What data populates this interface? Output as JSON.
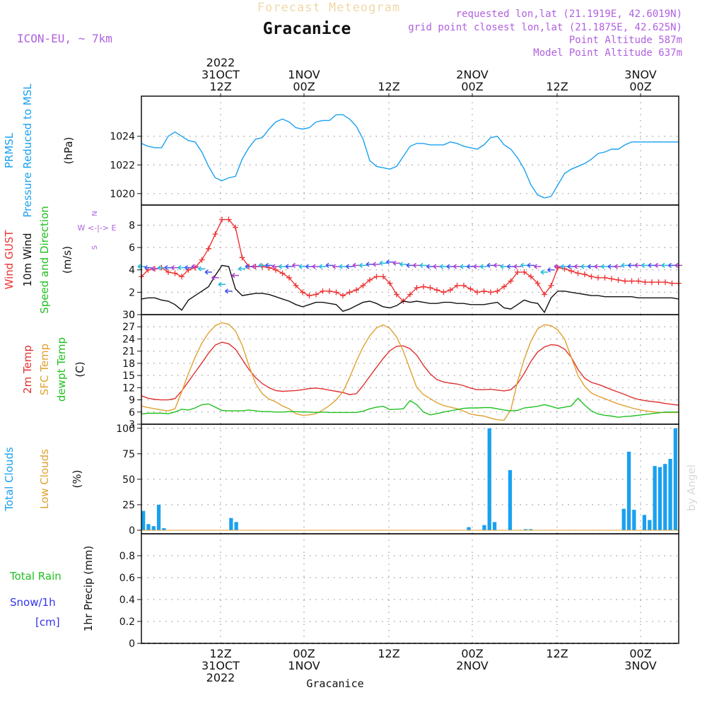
{
  "header": {
    "title": "Forecast Meteogram",
    "location": "Gracanice",
    "model": "ICON-EU, ~ 7km",
    "requested": "requested lon,lat (21.1919E, 42.6019N)",
    "grid_point": "grid point closest lon,lat (21.1875E, 42.625N)",
    "point_altitude": "Point Altitude 587m",
    "model_altitude": "Model Point Altitude 637m",
    "credit": "by Angel",
    "bottom_label": "Gracanice"
  },
  "colors": {
    "pressure": "#1aa0f0",
    "gust": "#ee3333",
    "wind": "#111111",
    "temp2m": "#e03030",
    "sfc": "#e0a030",
    "dewpt": "#20c020",
    "clouds": "#1aa0f0",
    "rain": "#20c020",
    "snow": "#3333ee",
    "purple": "#b060e0"
  },
  "chart_data": [
    {
      "type": "line",
      "panel": "pressure",
      "ylabels": [
        "PRMSL",
        "Pressure Reduced to MSL",
        "(hPa)"
      ],
      "ylim": [
        1019.2,
        1026.8
      ],
      "yticks": [
        1020,
        1022,
        1024
      ],
      "x": [
        0,
        3,
        6,
        9,
        12,
        15,
        18,
        21,
        24,
        27,
        30,
        33,
        36,
        39,
        42,
        45,
        48,
        51,
        54,
        57,
        60,
        63,
        66,
        69,
        72,
        75,
        78,
        81,
        84,
        87,
        90,
        93,
        96,
        99,
        102,
        105,
        108,
        111,
        114,
        117,
        120,
        123,
        126,
        129,
        132,
        135,
        138,
        141,
        144,
        147,
        150,
        153,
        156,
        159,
        162,
        165,
        168,
        171,
        174,
        177,
        180,
        183,
        186,
        189,
        192,
        195,
        198,
        201,
        204,
        207,
        210,
        213,
        216,
        219,
        222,
        225,
        228,
        231,
        234,
        237,
        240
      ],
      "series": [
        {
          "values": [
            1023.5,
            1023.3,
            1023.2,
            1023.2,
            1024.0,
            1024.3,
            1024.0,
            1023.7,
            1023.6,
            1022.9,
            1021.9,
            1021.1,
            1020.9,
            1021.1,
            1021.2,
            1022.4,
            1023.2,
            1023.8,
            1023.9,
            1024.5,
            1025.0,
            1025.2,
            1025.0,
            1024.6,
            1024.5,
            1024.6,
            1025.0,
            1025.1,
            1025.1,
            1025.5,
            1025.5,
            1025.2,
            1024.7,
            1023.8,
            1022.3,
            1021.9,
            1021.8,
            1021.7,
            1021.9,
            1022.6,
            1023.3,
            1023.5,
            1023.5,
            1023.4,
            1023.4,
            1023.4,
            1023.6,
            1023.5,
            1023.3,
            1023.2,
            1023.1,
            1023.4,
            1023.9,
            1024.0,
            1023.4,
            1023.1,
            1022.5,
            1021.7,
            1020.6,
            1019.9,
            1019.7,
            1019.8,
            1020.6,
            1021.4,
            1021.7,
            1021.9,
            1022.1,
            1022.4,
            1022.8,
            1022.9,
            1023.1,
            1023.1,
            1023.4,
            1023.6,
            1023.6,
            1023.6,
            1023.6,
            1023.6,
            1023.6,
            1023.6,
            1023.6
          ]
        }
      ]
    },
    {
      "type": "line",
      "panel": "wind",
      "ylabels": [
        "Wind GUST",
        "10m Wind",
        "Speed and Direction",
        "(m/s)"
      ],
      "direction_key": [
        "N",
        "W <-|-> E",
        "S"
      ],
      "ylim": [
        0,
        9.8
      ],
      "yticks": [
        0,
        2,
        4,
        6,
        8
      ],
      "series": [
        {
          "name": "Wind GUST",
          "values": [
            3.4,
            4.0,
            4.1,
            4.2,
            3.8,
            3.7,
            3.4,
            4.0,
            4.2,
            4.9,
            5.9,
            7.2,
            8.5,
            8.5,
            7.8,
            5.1,
            4.3,
            4.3,
            4.3,
            4.2,
            4.0,
            3.7,
            3.3,
            2.6,
            2.0,
            1.7,
            1.8,
            2.1,
            2.1,
            2.0,
            1.7,
            2.0,
            2.2,
            2.6,
            3.1,
            3.4,
            3.4,
            2.8,
            1.8,
            1.2,
            1.8,
            2.4,
            2.5,
            2.4,
            2.2,
            2.0,
            2.2,
            2.6,
            2.6,
            2.3,
            2.0,
            2.1,
            2.0,
            2.1,
            2.5,
            3.0,
            3.8,
            3.8,
            3.4,
            2.8,
            1.8,
            2.6,
            4.2,
            4.1,
            3.9,
            3.7,
            3.6,
            3.4,
            3.3,
            3.3,
            3.2,
            3.1,
            3.0,
            3.0,
            3.0,
            2.9,
            2.9,
            2.9,
            2.9,
            2.8,
            2.8
          ]
        },
        {
          "name": "10m Wind",
          "values": [
            1.4,
            1.5,
            1.5,
            1.3,
            1.2,
            0.9,
            0.4,
            1.3,
            1.7,
            2.1,
            2.5,
            3.5,
            4.4,
            4.3,
            2.3,
            1.7,
            1.8,
            1.9,
            1.9,
            1.8,
            1.6,
            1.4,
            1.2,
            0.9,
            0.7,
            0.9,
            1.1,
            1.1,
            1.0,
            0.9,
            0.3,
            0.5,
            0.8,
            1.1,
            1.2,
            1.0,
            0.7,
            0.6,
            0.8,
            1.2,
            1.1,
            1.2,
            1.1,
            1.0,
            1.0,
            1.1,
            1.1,
            1.0,
            1.0,
            0.9,
            0.9,
            0.9,
            1.0,
            1.1,
            0.6,
            0.5,
            0.9,
            1.3,
            1.1,
            1.0,
            0.2,
            1.5,
            2.1,
            2.1,
            2.0,
            1.9,
            1.8,
            1.7,
            1.7,
            1.6,
            1.6,
            1.6,
            1.6,
            1.6,
            1.5,
            1.5,
            1.5,
            1.5,
            1.5,
            1.5,
            1.4
          ]
        },
        {
          "name": "Speed and Direction",
          "values": [
            4.3,
            4.2,
            4.1,
            4.2,
            4.2,
            4.2,
            4.2,
            4.2,
            4.3,
            4.1,
            3.8,
            3.3,
            2.7,
            2.1,
            3.5,
            4.1,
            4.3,
            4.3,
            4.4,
            4.4,
            4.3,
            4.3,
            4.3,
            4.4,
            4.3,
            4.3,
            4.3,
            4.3,
            4.4,
            4.3,
            4.3,
            4.3,
            4.4,
            4.4,
            4.5,
            4.5,
            4.6,
            4.7,
            4.6,
            4.5,
            4.4,
            4.4,
            4.4,
            4.3,
            4.3,
            4.3,
            4.3,
            4.3,
            4.3,
            4.3,
            4.3,
            4.3,
            4.4,
            4.4,
            4.3,
            4.3,
            4.3,
            4.4,
            4.4,
            4.3,
            3.8,
            4.0,
            4.3,
            4.3,
            4.3,
            4.3,
            4.3,
            4.3,
            4.3,
            4.3,
            4.3,
            4.3,
            4.4,
            4.4,
            4.4,
            4.4,
            4.4,
            4.4,
            4.4,
            4.4,
            4.4
          ]
        }
      ]
    },
    {
      "type": "line",
      "panel": "temperature",
      "ylabels": [
        "2m Temp",
        "SFC Temp",
        "dewpt Temp",
        "(C)"
      ],
      "ylim": [
        3,
        30
      ],
      "yticks": [
        3,
        6,
        9,
        12,
        15,
        18,
        21,
        24,
        27,
        30
      ],
      "series": [
        {
          "name": "2m Temp",
          "values": [
            10.0,
            9.4,
            9.1,
            9.0,
            9.0,
            9.3,
            11.2,
            13.5,
            15.8,
            18.1,
            20.5,
            22.5,
            23.2,
            22.8,
            21.5,
            19.0,
            16.5,
            14.5,
            13.0,
            12.0,
            11.3,
            11.1,
            11.2,
            11.3,
            11.5,
            11.8,
            11.9,
            11.7,
            11.4,
            11.1,
            10.8,
            10.3,
            10.5,
            12.5,
            14.8,
            17.0,
            19.2,
            21.1,
            22.2,
            22.3,
            21.6,
            20.0,
            17.5,
            15.4,
            14.0,
            13.4,
            13.1,
            12.9,
            12.5,
            11.9,
            11.5,
            11.5,
            11.6,
            11.4,
            11.2,
            11.5,
            13.0,
            15.5,
            18.5,
            20.8,
            22.0,
            22.6,
            22.4,
            21.5,
            19.5,
            16.5,
            14.3,
            13.3,
            12.8,
            12.2,
            11.5,
            10.9,
            10.3,
            9.6,
            9.1,
            8.8,
            8.6,
            8.4,
            8.1,
            7.9,
            7.7
          ]
        },
        {
          "name": "SFC Temp",
          "values": [
            7.5,
            7.1,
            6.8,
            6.5,
            6.3,
            6.8,
            11.0,
            15.5,
            19.5,
            23.0,
            25.5,
            27.3,
            28.0,
            27.6,
            26.0,
            22.5,
            17.5,
            13.0,
            10.5,
            9.2,
            8.5,
            7.5,
            6.8,
            5.6,
            5.2,
            5.3,
            5.6,
            6.5,
            7.6,
            9.0,
            11.0,
            14.5,
            18.5,
            22.0,
            24.8,
            26.7,
            27.5,
            26.6,
            24.5,
            21.0,
            16.5,
            12.0,
            10.3,
            9.3,
            8.3,
            7.6,
            7.2,
            6.8,
            6.2,
            5.5,
            5.2,
            5.0,
            4.5,
            4.1,
            4.0,
            6.5,
            13.5,
            19.0,
            23.5,
            26.5,
            27.5,
            27.3,
            26.2,
            24.0,
            19.5,
            15.0,
            12.3,
            10.7,
            9.9,
            9.3,
            8.6,
            8.0,
            7.5,
            7.0,
            6.6,
            6.3,
            6.1,
            5.9,
            5.9,
            5.9,
            5.9
          ]
        },
        {
          "name": "dewpt Temp",
          "values": [
            5.5,
            5.7,
            5.7,
            5.7,
            5.6,
            6.0,
            6.7,
            6.5,
            7.0,
            7.8,
            8.0,
            7.2,
            6.4,
            6.3,
            6.3,
            6.3,
            6.5,
            6.3,
            6.1,
            6.1,
            6.0,
            6.0,
            6.1,
            6.1,
            6.0,
            6.0,
            5.9,
            6.0,
            5.9,
            5.9,
            5.9,
            5.9,
            5.9,
            6.2,
            6.8,
            7.2,
            7.4,
            6.6,
            6.7,
            6.8,
            8.8,
            7.8,
            6.0,
            5.3,
            5.6,
            6.0,
            6.3,
            6.6,
            6.9,
            7.0,
            7.0,
            7.1,
            7.1,
            6.8,
            6.5,
            6.3,
            6.4,
            7.0,
            7.2,
            7.4,
            7.8,
            7.4,
            6.9,
            7.2,
            7.5,
            9.4,
            7.7,
            6.3,
            5.5,
            5.2,
            5.0,
            4.7,
            4.9,
            5.0,
            5.2,
            5.4,
            5.6,
            5.8,
            6.0,
            6.0,
            6.0
          ]
        }
      ]
    },
    {
      "type": "bar",
      "panel": "clouds",
      "ylabels": [
        "Total Clouds",
        "Low Clouds",
        "(%)"
      ],
      "ylim": [
        -3.5,
        104
      ],
      "yticks": [
        0,
        25,
        50,
        75,
        100
      ],
      "series": [
        {
          "name": "Total Clouds",
          "values": [
            19,
            6,
            4,
            25,
            2,
            0,
            0,
            0,
            0,
            0,
            0,
            0,
            0,
            0,
            0,
            0,
            0,
            12,
            8,
            0,
            0,
            0,
            0,
            0,
            0,
            0,
            0,
            0,
            0,
            0,
            0,
            0,
            0,
            0,
            0,
            0,
            0,
            0,
            0,
            0,
            0,
            0,
            0,
            0,
            0,
            0,
            0,
            0,
            0,
            0,
            0,
            0,
            0,
            0,
            0,
            0,
            0,
            0,
            0,
            0,
            0,
            0,
            0,
            3,
            0,
            0,
            5,
            100,
            8,
            0,
            0,
            59,
            0,
            0,
            1,
            1,
            0,
            0,
            0,
            0,
            0,
            0,
            0,
            0,
            0,
            0,
            0,
            0,
            0,
            0,
            0,
            0,
            0,
            21,
            77,
            20,
            0,
            15,
            10,
            63,
            62,
            65,
            70,
            100
          ]
        },
        {
          "name": "Low Clouds",
          "values": [
            0,
            0,
            0,
            0,
            0,
            0,
            0,
            0,
            0,
            0,
            0,
            0,
            0,
            0,
            0,
            0,
            0,
            0,
            0,
            0,
            0,
            0,
            0,
            0,
            0,
            0,
            0,
            0,
            0,
            0,
            0,
            0,
            0,
            0,
            0,
            0,
            0,
            0,
            0,
            0,
            0,
            0,
            0,
            0,
            0,
            0,
            0,
            0,
            0,
            0,
            0,
            0,
            0,
            0,
            0,
            0,
            0,
            0,
            0,
            0,
            0,
            0,
            0,
            0,
            0,
            0,
            0,
            0,
            0,
            0,
            0,
            0,
            0,
            0,
            0,
            0,
            0,
            0,
            0,
            0,
            0,
            0,
            0,
            0,
            0,
            0,
            0,
            0,
            0,
            0,
            0,
            0,
            0,
            0,
            0,
            0,
            0,
            0,
            0,
            0,
            0,
            0,
            0,
            0
          ]
        }
      ]
    },
    {
      "type": "bar",
      "panel": "precip",
      "ylabels": [
        "Total Rain",
        "Snow/1h",
        "[cm]",
        "1hr Precip (mm)"
      ],
      "ylim": [
        0,
        1.0
      ],
      "yticks": [
        0,
        0.2,
        0.4,
        0.6,
        0.8
      ],
      "ytick_labels": [
        "0",
        "0.2",
        "0.4",
        "0.6",
        "0.8"
      ],
      "series": [
        {
          "name": "Total Rain",
          "values": []
        },
        {
          "name": "Snow/1h",
          "values": []
        }
      ]
    }
  ],
  "x_axis": {
    "top": [
      {
        "lines": [
          "2022",
          "31OCT",
          "12Z"
        ]
      },
      {
        "lines": [
          "1NOV",
          "00Z"
        ]
      },
      {
        "lines": [
          "12Z"
        ]
      },
      {
        "lines": [
          "2NOV",
          "00Z"
        ]
      },
      {
        "lines": [
          "12Z"
        ]
      },
      {
        "lines": [
          "3NOV",
          "00Z"
        ]
      }
    ],
    "bottom": [
      {
        "lines": [
          "12Z",
          "31OCT",
          "2022"
        ]
      },
      {
        "lines": [
          "00Z",
          "1NOV"
        ]
      },
      {
        "lines": [
          "12Z"
        ]
      },
      {
        "lines": [
          "00Z",
          "2NOV"
        ]
      },
      {
        "lines": [
          "12Z"
        ]
      },
      {
        "lines": [
          "00Z",
          "3NOV"
        ]
      }
    ]
  }
}
